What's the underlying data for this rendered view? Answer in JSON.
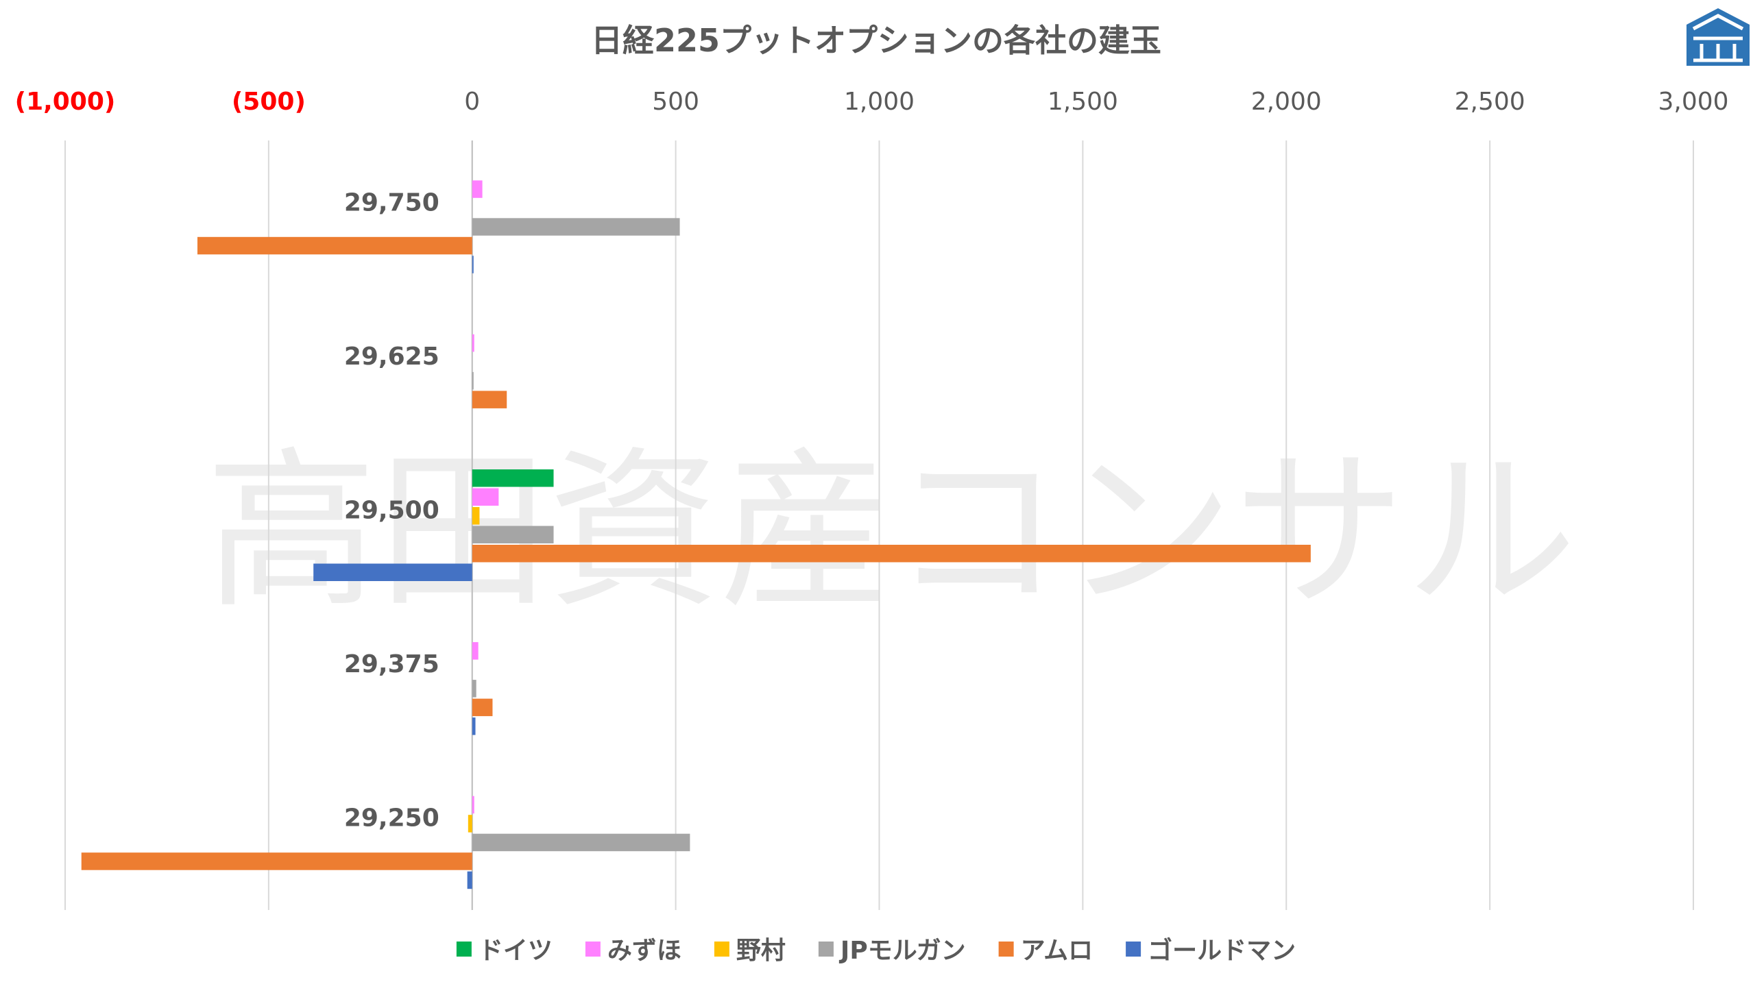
{
  "chart_data": {
    "type": "bar",
    "orientation": "horizontal",
    "title": "日経225プットオプションの各社の建玉",
    "watermark": "高田資産コンサル",
    "categories": [
      "29,750",
      "29,625",
      "29,500",
      "29,375",
      "29,250"
    ],
    "xlim": [
      -1000,
      3000
    ],
    "x_ticks": [
      {
        "value": -1000,
        "label": "(1,000)"
      },
      {
        "value": -500,
        "label": "(500)"
      },
      {
        "value": 0,
        "label": "0"
      },
      {
        "value": 500,
        "label": "500"
      },
      {
        "value": 1000,
        "label": "1,000"
      },
      {
        "value": 1500,
        "label": "1,500"
      },
      {
        "value": 2000,
        "label": "2,000"
      },
      {
        "value": 2500,
        "label": "2,500"
      },
      {
        "value": 3000,
        "label": "3,000"
      }
    ],
    "axis_position": "top",
    "grid": true,
    "legend_position": "bottom",
    "series": [
      {
        "name": "ドイツ",
        "color": "#00B050",
        "values": [
          0,
          0,
          200,
          0,
          0
        ]
      },
      {
        "name": "みずほ",
        "color": "#FF80FF",
        "values": [
          25,
          5,
          65,
          15,
          5
        ]
      },
      {
        "name": "野村",
        "color": "#FFC000",
        "values": [
          0,
          0,
          18,
          0,
          -10
        ]
      },
      {
        "name": "JPモルガン",
        "color": "#A5A5A5",
        "values": [
          510,
          2,
          200,
          10,
          535
        ]
      },
      {
        "name": "アムロ",
        "color": "#ED7D31",
        "values": [
          -675,
          85,
          2060,
          50,
          -960
        ]
      },
      {
        "name": "ゴールドマン",
        "color": "#4472C4",
        "values": [
          2,
          0,
          -390,
          8,
          -12
        ]
      }
    ]
  },
  "colors": {
    "negative_tick": "#FF0000",
    "positive_tick": "#595959",
    "category_label": "#595959",
    "grid": "#D9D9D9",
    "title": "#595959",
    "logo": "#2E75B6"
  },
  "logo_icon": "building-logo-icon"
}
